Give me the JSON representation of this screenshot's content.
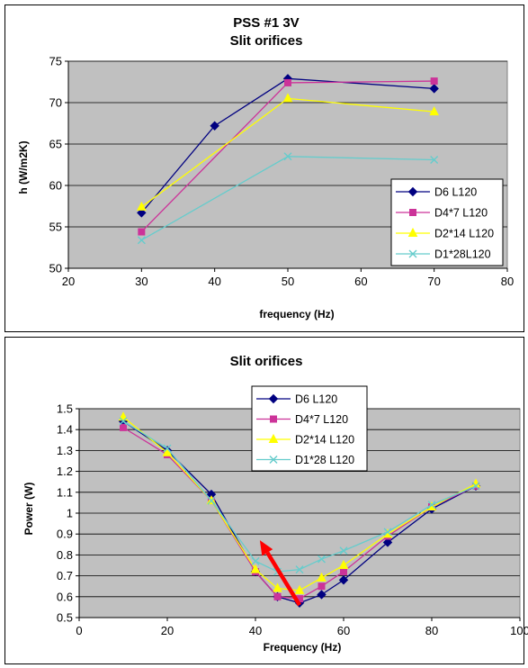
{
  "charts": [
    {
      "type": "line",
      "title": "PSS #1 3V",
      "subtitle": "Slit orifices",
      "xlabel": "frequency (Hz)",
      "ylabel": "h (W/m2K)",
      "xlim": [
        20,
        80
      ],
      "ylim": [
        50,
        75
      ],
      "xticks": [
        20,
        30,
        40,
        50,
        60,
        70,
        80
      ],
      "yticks": [
        50,
        55,
        60,
        65,
        70,
        75
      ],
      "grid": "horizontal",
      "legend_position": "bottom-right",
      "series": [
        {
          "name": "D6 L120",
          "color": "#000080",
          "marker": "diamond",
          "points": [
            [
              30,
              56.7
            ],
            [
              40,
              67.2
            ],
            [
              50,
              72.9
            ],
            [
              70,
              71.7
            ]
          ]
        },
        {
          "name": "D4*7 L120",
          "color": "#cc3399",
          "marker": "square",
          "points": [
            [
              30,
              54.4
            ],
            [
              50,
              72.4
            ],
            [
              70,
              72.6
            ]
          ]
        },
        {
          "name": "D2*14 L120",
          "color": "#ffff00",
          "marker": "triangle",
          "points": [
            [
              30,
              57.4
            ],
            [
              50,
              70.5
            ],
            [
              70,
              68.9
            ]
          ]
        },
        {
          "name": "D1*28L120",
          "color": "#66cccc",
          "marker": "x",
          "points": [
            [
              30,
              53.4
            ],
            [
              50,
              63.5
            ],
            [
              70,
              63.1
            ]
          ]
        }
      ]
    },
    {
      "type": "line",
      "title": "Slit orifices",
      "xlabel": "Frequency (Hz)",
      "ylabel": "Power (W)",
      "xlim": [
        0,
        100
      ],
      "ylim": [
        0.5,
        1.5
      ],
      "xticks": [
        0,
        20,
        40,
        60,
        80,
        100
      ],
      "yticks": [
        0.5,
        0.6,
        0.7,
        0.8,
        0.9,
        1,
        1.1,
        1.2,
        1.3,
        1.4,
        1.5
      ],
      "grid": "horizontal",
      "legend_position": "top-center",
      "annotation": {
        "type": "arrow",
        "color": "#ff0000",
        "from": [
          50,
          0.56
        ],
        "to": [
          41,
          0.87
        ]
      },
      "series": [
        {
          "name": "D6 L120",
          "color": "#000080",
          "marker": "diamond",
          "points": [
            [
              10,
              1.44
            ],
            [
              20,
              1.3
            ],
            [
              30,
              1.09
            ],
            [
              40,
              0.72
            ],
            [
              45,
              0.6
            ],
            [
              50,
              0.57
            ],
            [
              55,
              0.61
            ],
            [
              60,
              0.68
            ],
            [
              70,
              0.86
            ],
            [
              80,
              1.02
            ],
            [
              90,
              1.13
            ]
          ]
        },
        {
          "name": "D4*7 L120",
          "color": "#cc3399",
          "marker": "square",
          "points": [
            [
              10,
              1.41
            ],
            [
              20,
              1.28
            ],
            [
              30,
              1.06
            ],
            [
              40,
              0.72
            ],
            [
              45,
              0.6
            ],
            [
              50,
              0.59
            ],
            [
              55,
              0.65
            ],
            [
              60,
              0.72
            ],
            [
              70,
              0.89
            ],
            [
              80,
              1.03
            ],
            [
              90,
              1.13
            ]
          ]
        },
        {
          "name": "D2*14 L120",
          "color": "#ffff00",
          "marker": "triangle",
          "points": [
            [
              10,
              1.46
            ],
            [
              20,
              1.29
            ],
            [
              30,
              1.06
            ],
            [
              40,
              0.73
            ],
            [
              45,
              0.64
            ],
            [
              50,
              0.63
            ],
            [
              55,
              0.69
            ],
            [
              60,
              0.75
            ],
            [
              70,
              0.9
            ],
            [
              80,
              1.03
            ],
            [
              90,
              1.14
            ]
          ]
        },
        {
          "name": "D1*28 L120",
          "color": "#66cccc",
          "marker": "x",
          "points": [
            [
              10,
              1.44
            ],
            [
              20,
              1.31
            ],
            [
              30,
              1.06
            ],
            [
              40,
              0.77
            ],
            [
              45,
              0.72
            ],
            [
              50,
              0.73
            ],
            [
              55,
              0.78
            ],
            [
              60,
              0.82
            ],
            [
              70,
              0.91
            ],
            [
              80,
              1.04
            ],
            [
              90,
              1.13
            ]
          ]
        }
      ]
    }
  ]
}
